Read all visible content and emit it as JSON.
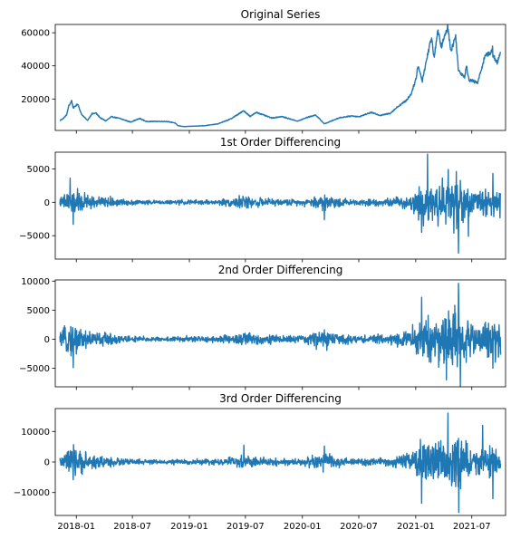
{
  "chart_data": [
    {
      "type": "line",
      "title": "Original Series",
      "ylim": [
        1000,
        65000
      ],
      "yticks": [
        20000,
        40000,
        60000
      ],
      "ytick_labels": [
        "20000",
        "40000",
        "60000"
      ],
      "show_xtick_labels": false,
      "color": "#1f77b4",
      "anchors": [
        [
          "2017-11-09",
          7000
        ],
        [
          "2017-11-20",
          8300
        ],
        [
          "2017-12-01",
          10500
        ],
        [
          "2017-12-07",
          15500
        ],
        [
          "2017-12-17",
          19000
        ],
        [
          "2017-12-22",
          14500
        ],
        [
          "2017-12-28",
          15500
        ],
        [
          "2018-01-06",
          17000
        ],
        [
          "2018-01-17",
          11000
        ],
        [
          "2018-02-06",
          7000
        ],
        [
          "2018-02-20",
          11000
        ],
        [
          "2018-03-05",
          11500
        ],
        [
          "2018-03-20",
          8500
        ],
        [
          "2018-04-06",
          6800
        ],
        [
          "2018-04-25",
          9300
        ],
        [
          "2018-05-20",
          8300
        ],
        [
          "2018-06-25",
          6100
        ],
        [
          "2018-07-25",
          8200
        ],
        [
          "2018-08-15",
          6400
        ],
        [
          "2018-09-20",
          6500
        ],
        [
          "2018-10-20",
          6400
        ],
        [
          "2018-11-15",
          5600
        ],
        [
          "2018-11-25",
          3900
        ],
        [
          "2018-12-15",
          3300
        ],
        [
          "2019-01-15",
          3600
        ],
        [
          "2019-02-20",
          3900
        ],
        [
          "2019-04-02",
          4900
        ],
        [
          "2019-05-13",
          7800
        ],
        [
          "2019-06-26",
          12900
        ],
        [
          "2019-07-16",
          9500
        ],
        [
          "2019-08-06",
          11900
        ],
        [
          "2019-09-24",
          8500
        ],
        [
          "2019-10-26",
          9400
        ],
        [
          "2019-12-17",
          6600
        ],
        [
          "2020-01-15",
          8800
        ],
        [
          "2020-02-13",
          10300
        ],
        [
          "2020-03-12",
          5000
        ],
        [
          "2020-04-30",
          8700
        ],
        [
          "2020-06-10",
          9800
        ],
        [
          "2020-07-01",
          9200
        ],
        [
          "2020-08-10",
          11900
        ],
        [
          "2020-09-08",
          10100
        ],
        [
          "2020-10-10",
          11300
        ],
        [
          "2020-11-05",
          15500
        ],
        [
          "2020-12-01",
          19000
        ],
        [
          "2020-12-17",
          23000
        ],
        [
          "2021-01-03",
          33000
        ],
        [
          "2021-01-08",
          40500
        ],
        [
          "2021-01-22",
          31000
        ],
        [
          "2021-02-08",
          46500
        ],
        [
          "2021-02-21",
          57500
        ],
        [
          "2021-03-01",
          45000
        ],
        [
          "2021-03-13",
          61000
        ],
        [
          "2021-03-25",
          51700
        ],
        [
          "2021-04-14",
          63500
        ],
        [
          "2021-04-25",
          49000
        ],
        [
          "2021-05-10",
          58000
        ],
        [
          "2021-05-19",
          37000
        ],
        [
          "2021-06-08",
          33500
        ],
        [
          "2021-06-14",
          40000
        ],
        [
          "2021-06-22",
          31500
        ],
        [
          "2021-07-20",
          29800
        ],
        [
          "2021-08-14",
          47000
        ],
        [
          "2021-08-31",
          47000
        ],
        [
          "2021-09-06",
          52000
        ],
        [
          "2021-09-07",
          46000
        ],
        [
          "2021-09-12",
          45000
        ],
        [
          "2021-09-21",
          42000
        ],
        [
          "2021-10-02",
          47500
        ]
      ]
    },
    {
      "type": "line",
      "title": "1st Order Differencing",
      "ylim": [
        -8500,
        7500
      ],
      "yticks": [
        -5000,
        0,
        5000
      ],
      "ytick_labels": [
        "−5000",
        "0",
        "5000"
      ],
      "show_xtick_labels": false,
      "color": "#1f77b4",
      "volatility": [
        [
          "2017-11-09",
          500
        ],
        [
          "2017-12-10",
          1700
        ],
        [
          "2018-01-15",
          1300
        ],
        [
          "2018-03-01",
          800
        ],
        [
          "2018-06-01",
          400
        ],
        [
          "2018-10-01",
          200
        ],
        [
          "2018-12-01",
          300
        ],
        [
          "2019-04-01",
          300
        ],
        [
          "2019-06-25",
          800
        ],
        [
          "2019-09-01",
          450
        ],
        [
          "2020-01-01",
          350
        ],
        [
          "2020-03-12",
          1100
        ],
        [
          "2020-06-01",
          350
        ],
        [
          "2020-10-01",
          450
        ],
        [
          "2020-12-10",
          900
        ],
        [
          "2021-01-10",
          2200
        ],
        [
          "2021-03-01",
          2600
        ],
        [
          "2021-05-15",
          3400
        ],
        [
          "2021-07-01",
          1500
        ],
        [
          "2021-09-01",
          1800
        ],
        [
          "2021-10-02",
          2000
        ]
      ],
      "spikes": [
        [
          "2017-12-12",
          3600
        ],
        [
          "2017-12-22",
          -3300
        ],
        [
          "2020-03-12",
          -2600
        ],
        [
          "2021-01-20",
          -4500
        ],
        [
          "2021-02-08",
          7200
        ],
        [
          "2021-04-16",
          4900
        ],
        [
          "2021-05-12",
          4600
        ],
        [
          "2021-05-19",
          -7600
        ],
        [
          "2021-06-20",
          -5100
        ],
        [
          "2021-09-07",
          4300
        ]
      ]
    },
    {
      "type": "line",
      "title": "2nd Order Differencing",
      "ylim": [
        -8200,
        10200
      ],
      "yticks": [
        -5000,
        0,
        5000,
        10000
      ],
      "ytick_labels": [
        "−5000",
        "0",
        "5000",
        "10000"
      ],
      "show_xtick_labels": false,
      "color": "#1f77b4",
      "volatility": [
        [
          "2017-11-09",
          700
        ],
        [
          "2017-12-10",
          2400
        ],
        [
          "2018-01-15",
          1800
        ],
        [
          "2018-03-01",
          1100
        ],
        [
          "2018-06-01",
          550
        ],
        [
          "2018-10-01",
          280
        ],
        [
          "2018-12-01",
          420
        ],
        [
          "2019-04-01",
          420
        ],
        [
          "2019-06-25",
          1100
        ],
        [
          "2019-09-01",
          630
        ],
        [
          "2020-01-01",
          500
        ],
        [
          "2020-03-12",
          1500
        ],
        [
          "2020-06-01",
          500
        ],
        [
          "2020-10-01",
          630
        ],
        [
          "2020-12-10",
          1300
        ],
        [
          "2021-01-10",
          3100
        ],
        [
          "2021-03-01",
          3600
        ],
        [
          "2021-05-15",
          4700
        ],
        [
          "2021-07-01",
          2100
        ],
        [
          "2021-09-01",
          2500
        ],
        [
          "2021-10-02",
          2800
        ]
      ],
      "spikes": [
        [
          "2017-12-22",
          -4900
        ],
        [
          "2021-01-20",
          7200
        ],
        [
          "2021-05-19",
          9600
        ],
        [
          "2021-05-25",
          -8200
        ],
        [
          "2021-04-10",
          -7000
        ],
        [
          "2021-09-07",
          -5000
        ]
      ]
    },
    {
      "type": "line",
      "title": "3rd Order Differencing",
      "ylim": [
        -17500,
        17500
      ],
      "yticks": [
        -10000,
        0,
        10000
      ],
      "ytick_labels": [
        "−10000",
        "0",
        "10000"
      ],
      "show_xtick_labels": true,
      "color": "#1f77b4",
      "volatility": [
        [
          "2017-11-09",
          1200
        ],
        [
          "2017-12-10",
          4000
        ],
        [
          "2018-01-15",
          3000
        ],
        [
          "2018-03-01",
          1900
        ],
        [
          "2018-06-01",
          950
        ],
        [
          "2018-10-01",
          480
        ],
        [
          "2018-12-01",
          720
        ],
        [
          "2019-04-01",
          720
        ],
        [
          "2019-06-25",
          1900
        ],
        [
          "2019-09-01",
          1100
        ],
        [
          "2020-01-01",
          850
        ],
        [
          "2020-03-12",
          2600
        ],
        [
          "2020-06-01",
          850
        ],
        [
          "2020-10-01",
          1100
        ],
        [
          "2020-12-10",
          2200
        ],
        [
          "2021-01-10",
          5300
        ],
        [
          "2021-03-01",
          6200
        ],
        [
          "2021-05-15",
          8100
        ],
        [
          "2021-07-01",
          3600
        ],
        [
          "2021-09-01",
          4300
        ],
        [
          "2021-10-02",
          4800
        ]
      ],
      "spikes": [
        [
          "2017-12-22",
          -5800
        ],
        [
          "2019-06-26",
          5500
        ],
        [
          "2020-03-12",
          5200
        ],
        [
          "2021-01-20",
          -13500
        ],
        [
          "2021-04-15",
          16000
        ],
        [
          "2021-05-20",
          -16500
        ],
        [
          "2021-08-05",
          12000
        ],
        [
          "2021-09-07",
          -12000
        ]
      ]
    }
  ],
  "x_axis": {
    "range": [
      "2017-10-25",
      "2021-10-18"
    ],
    "ticks": [
      "2018-01-01",
      "2018-07-01",
      "2019-01-01",
      "2019-07-01",
      "2020-01-01",
      "2020-07-01",
      "2021-01-01",
      "2021-07-01"
    ],
    "tick_labels": [
      "2018-01",
      "2018-07",
      "2019-01",
      "2019-07",
      "2020-01",
      "2020-07",
      "2021-01",
      "2021-07"
    ]
  }
}
